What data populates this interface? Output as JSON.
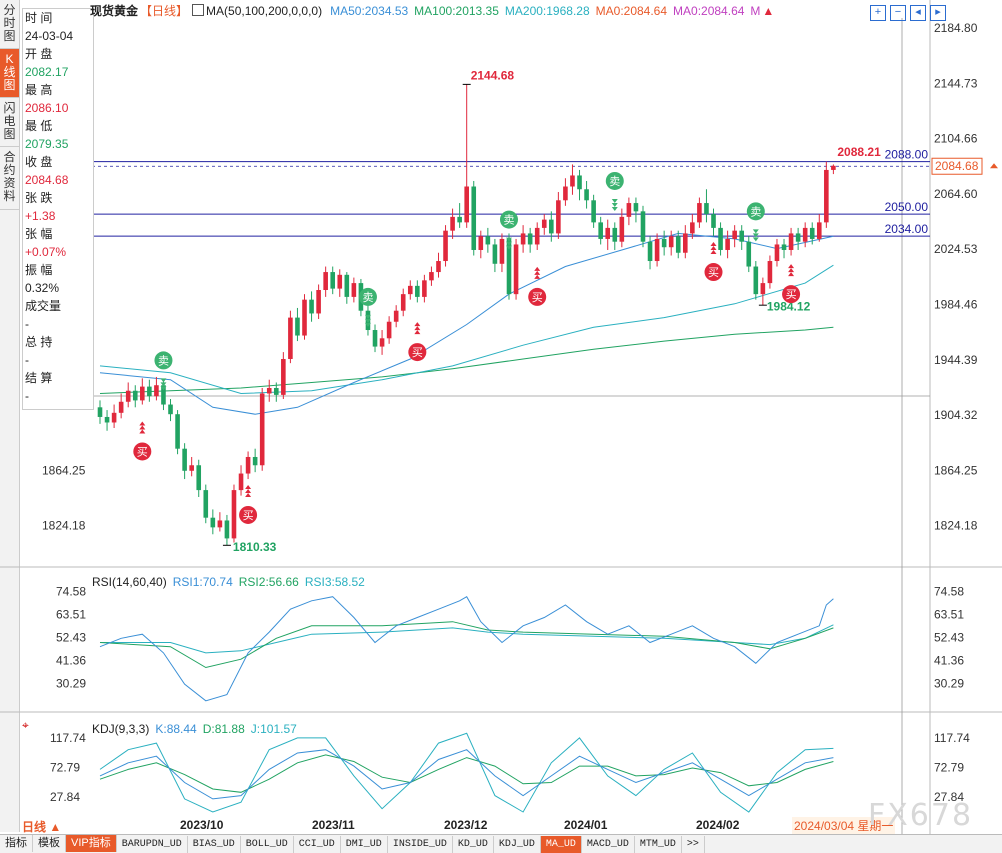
{
  "left_tabs": [
    "分时图",
    "K线图",
    "闪电图",
    "合约资料"
  ],
  "info": {
    "time_label": "时 间",
    "time_value": "24-03-04",
    "open_label": "开 盘",
    "open_value": "2082.17",
    "high_label": "最 高",
    "high_value": "2086.10",
    "low_label": "最 低",
    "low_value": "2079.35",
    "close_label": "收 盘",
    "close_value": "2084.68",
    "change_label": "张 跌",
    "change_value": "+1.38",
    "pct_label": "张 幅",
    "pct_value": "+0.07%",
    "amp_label": "振 幅",
    "amp_value": "0.32%",
    "vol_label": "成交量",
    "vol_value": "-",
    "hold_label": "总 持",
    "hold_value": "-",
    "settle_label": "结 算",
    "settle_value": "-"
  },
  "main_legend": {
    "title": "现货黄金",
    "period": "【日线】",
    "ma_param": "MA(50,100,200,0,0,0)",
    "ma50": "MA50:2034.53",
    "ma100": "MA100:2013.35",
    "ma200": "MA200:1968.28",
    "ma0a": "MA0:2084.64",
    "ma0b": "MA0:2084.64",
    "m": "M"
  },
  "colors": {
    "ma50": "#3a8fd6",
    "ma100": "#21a362",
    "ma200": "#2ab0c0",
    "up": "#e0283c",
    "down": "#21a362"
  },
  "price_axis": [
    "2184.80",
    "2144.73",
    "2104.66",
    "2064.60",
    "2024.53",
    "1984.46",
    "1944.39",
    "1904.32",
    "1864.25",
    "1824.18"
  ],
  "hlines": [
    "2088.00",
    "2050.00",
    "2034.00"
  ],
  "current_price": "2084.68",
  "annotations": {
    "high": "2144.68",
    "low": "1810.33",
    "last_high": "2088.21",
    "mid_low": "1984.12"
  },
  "signals": {
    "buy": "买",
    "sell": "卖"
  },
  "rsi": {
    "title": "RSI(14,60,40)",
    "rsi1": "RSI1:70.74",
    "rsi2": "RSI2:56.66",
    "rsi3": "RSI3:58.52",
    "axis": [
      "74.58",
      "63.51",
      "52.43",
      "41.36",
      "30.29"
    ]
  },
  "kdj": {
    "title": "KDJ(9,3,3)",
    "k": "K:88.44",
    "d": "D:81.88",
    "j": "J:101.57",
    "axis": [
      "117.74",
      "72.79",
      "27.84"
    ]
  },
  "date_axis": [
    "2023/10",
    "2023/11",
    "2023/12",
    "2024/01",
    "2024/02"
  ],
  "period_selector": "日线 ▲",
  "current_date": "2024/03/04 星期一",
  "watermark": "FX678",
  "bottom_buttons": [
    "指标",
    "模板",
    "VIP指标",
    "BARUPDN_UD",
    "BIAS_UD",
    "BOLL_UD",
    "CCI_UD",
    "DMI_UD",
    "INSIDE_UD",
    "KD_UD",
    "KDJ_UD",
    "MA_UD",
    "MACD_UD",
    "MTM_UD",
    ">>"
  ],
  "chart_data": {
    "type": "candlestick",
    "xlim": [
      0,
      112
    ],
    "ylim": [
      1795,
      2195
    ],
    "candles": [
      [
        0,
        1910,
        1903,
        1915,
        1898
      ],
      [
        1,
        1903,
        1899,
        1908,
        1893
      ],
      [
        2,
        1899,
        1906,
        1912,
        1895
      ],
      [
        3,
        1906,
        1914,
        1920,
        1902
      ],
      [
        4,
        1914,
        1922,
        1928,
        1910
      ],
      [
        5,
        1922,
        1915,
        1926,
        1910
      ],
      [
        6,
        1915,
        1925,
        1931,
        1912
      ],
      [
        7,
        1925,
        1918,
        1930,
        1914
      ],
      [
        8,
        1918,
        1926,
        1932,
        1915
      ],
      [
        9,
        1926,
        1912,
        1929,
        1908
      ],
      [
        10,
        1912,
        1905,
        1916,
        1900
      ],
      [
        11,
        1905,
        1880,
        1908,
        1876
      ],
      [
        12,
        1880,
        1864,
        1884,
        1858
      ],
      [
        13,
        1864,
        1868,
        1874,
        1860
      ],
      [
        14,
        1868,
        1850,
        1872,
        1845
      ],
      [
        15,
        1850,
        1830,
        1854,
        1826
      ],
      [
        16,
        1830,
        1823,
        1836,
        1818
      ],
      [
        17,
        1823,
        1828,
        1834,
        1820
      ],
      [
        18,
        1828,
        1815,
        1832,
        1810
      ],
      [
        19,
        1815,
        1850,
        1854,
        1812
      ],
      [
        20,
        1850,
        1862,
        1868,
        1846
      ],
      [
        21,
        1862,
        1874,
        1878,
        1858
      ],
      [
        22,
        1874,
        1868,
        1880,
        1863
      ],
      [
        23,
        1868,
        1920,
        1924,
        1864
      ],
      [
        24,
        1920,
        1924,
        1930,
        1914
      ],
      [
        25,
        1924,
        1919,
        1928,
        1914
      ],
      [
        26,
        1919,
        1945,
        1950,
        1916
      ],
      [
        27,
        1945,
        1975,
        1980,
        1942
      ],
      [
        28,
        1975,
        1962,
        1982,
        1958
      ],
      [
        29,
        1962,
        1988,
        1992,
        1959
      ],
      [
        30,
        1988,
        1978,
        1994,
        1972
      ],
      [
        31,
        1978,
        1995,
        1999,
        1974
      ],
      [
        32,
        1995,
        2008,
        2012,
        1990
      ],
      [
        33,
        2008,
        1996,
        2012,
        1992
      ],
      [
        34,
        1996,
        2006,
        2010,
        1990
      ],
      [
        35,
        2006,
        1990,
        2008,
        1985
      ],
      [
        36,
        1990,
        2000,
        2004,
        1986
      ],
      [
        37,
        2000,
        1980,
        2003,
        1976
      ],
      [
        38,
        1980,
        1966,
        1984,
        1962
      ],
      [
        39,
        1966,
        1954,
        1970,
        1950
      ],
      [
        40,
        1954,
        1960,
        1966,
        1948
      ],
      [
        41,
        1960,
        1972,
        1976,
        1956
      ],
      [
        42,
        1972,
        1980,
        1984,
        1968
      ],
      [
        43,
        1980,
        1992,
        1996,
        1976
      ],
      [
        44,
        1992,
        1998,
        2002,
        1988
      ],
      [
        45,
        1998,
        1990,
        2002,
        1986
      ],
      [
        46,
        1990,
        2002,
        2006,
        1986
      ],
      [
        47,
        2002,
        2008,
        2012,
        1998
      ],
      [
        48,
        2008,
        2016,
        2022,
        2004
      ],
      [
        49,
        2016,
        2038,
        2042,
        2012
      ],
      [
        50,
        2038,
        2048,
        2054,
        2032
      ],
      [
        51,
        2048,
        2044,
        2058,
        2040
      ],
      [
        52,
        2044,
        2070,
        2144,
        2040
      ],
      [
        53,
        2070,
        2024,
        2074,
        2020
      ],
      [
        54,
        2024,
        2034,
        2038,
        2018
      ],
      [
        55,
        2034,
        2028,
        2040,
        2022
      ],
      [
        56,
        2028,
        2014,
        2032,
        2008
      ],
      [
        57,
        2014,
        2032,
        2036,
        2008
      ],
      [
        58,
        2032,
        1992,
        2036,
        1988
      ],
      [
        59,
        1992,
        2028,
        2032,
        1988
      ],
      [
        60,
        2028,
        2036,
        2042,
        2022
      ],
      [
        61,
        2036,
        2028,
        2040,
        2022
      ],
      [
        62,
        2028,
        2040,
        2044,
        2024
      ],
      [
        63,
        2040,
        2046,
        2050,
        2035
      ],
      [
        64,
        2046,
        2036,
        2052,
        2030
      ],
      [
        65,
        2036,
        2060,
        2066,
        2032
      ],
      [
        66,
        2060,
        2070,
        2076,
        2056
      ],
      [
        67,
        2070,
        2078,
        2086,
        2064
      ],
      [
        68,
        2078,
        2068,
        2082,
        2060
      ],
      [
        69,
        2068,
        2060,
        2074,
        2054
      ],
      [
        70,
        2060,
        2044,
        2064,
        2040
      ],
      [
        71,
        2044,
        2032,
        2048,
        2028
      ],
      [
        72,
        2032,
        2040,
        2046,
        2024
      ],
      [
        73,
        2040,
        2030,
        2044,
        2024
      ],
      [
        74,
        2030,
        2048,
        2054,
        2026
      ],
      [
        75,
        2048,
        2058,
        2062,
        2042
      ],
      [
        76,
        2058,
        2052,
        2062,
        2044
      ],
      [
        77,
        2052,
        2030,
        2056,
        2026
      ],
      [
        78,
        2030,
        2016,
        2034,
        2010
      ],
      [
        79,
        2016,
        2032,
        2036,
        2012
      ],
      [
        80,
        2032,
        2026,
        2038,
        2020
      ],
      [
        81,
        2026,
        2034,
        2038,
        2020
      ],
      [
        82,
        2034,
        2022,
        2038,
        2018
      ],
      [
        83,
        2022,
        2036,
        2042,
        2018
      ],
      [
        84,
        2036,
        2044,
        2050,
        2032
      ],
      [
        85,
        2044,
        2058,
        2062,
        2040
      ],
      [
        86,
        2058,
        2050,
        2068,
        2044
      ],
      [
        87,
        2050,
        2040,
        2054,
        2034
      ],
      [
        88,
        2040,
        2024,
        2044,
        2020
      ],
      [
        89,
        2024,
        2032,
        2038,
        2018
      ],
      [
        90,
        2032,
        2038,
        2042,
        2026
      ],
      [
        91,
        2038,
        2030,
        2042,
        2024
      ],
      [
        92,
        2030,
        2012,
        2034,
        2008
      ],
      [
        93,
        2012,
        1992,
        2016,
        1988
      ],
      [
        94,
        1992,
        2000,
        2004,
        1984
      ],
      [
        95,
        2000,
        2016,
        2020,
        1996
      ],
      [
        96,
        2016,
        2028,
        2032,
        2012
      ],
      [
        97,
        2028,
        2024,
        2032,
        2018
      ],
      [
        98,
        2024,
        2036,
        2040,
        2020
      ],
      [
        99,
        2036,
        2030,
        2040,
        2024
      ],
      [
        100,
        2030,
        2040,
        2044,
        2026
      ],
      [
        101,
        2040,
        2032,
        2044,
        2028
      ],
      [
        102,
        2032,
        2044,
        2050,
        2030
      ],
      [
        103,
        2044,
        2082,
        2088,
        2040
      ],
      [
        104,
        2082,
        2085,
        2086,
        2079
      ]
    ],
    "ma50": [
      [
        0,
        1935
      ],
      [
        10,
        1930
      ],
      [
        16,
        1910
      ],
      [
        22,
        1905
      ],
      [
        28,
        1910
      ],
      [
        36,
        1928
      ],
      [
        44,
        1945
      ],
      [
        52,
        1970
      ],
      [
        58,
        1992
      ],
      [
        66,
        2012
      ],
      [
        74,
        2024
      ],
      [
        82,
        2036
      ],
      [
        90,
        2032
      ],
      [
        96,
        2025
      ],
      [
        104,
        2034
      ]
    ],
    "ma100": [
      [
        0,
        1940
      ],
      [
        10,
        1935
      ],
      [
        20,
        1920
      ],
      [
        30,
        1922
      ],
      [
        40,
        1930
      ],
      [
        50,
        1940
      ],
      [
        60,
        1955
      ],
      [
        70,
        1968
      ],
      [
        80,
        1975
      ],
      [
        90,
        1985
      ],
      [
        100,
        2000
      ],
      [
        104,
        2013
      ]
    ],
    "ma200": [
      [
        0,
        1920
      ],
      [
        10,
        1922
      ],
      [
        20,
        1924
      ],
      [
        30,
        1928
      ],
      [
        40,
        1932
      ],
      [
        50,
        1938
      ],
      [
        60,
        1945
      ],
      [
        70,
        1952
      ],
      [
        80,
        1958
      ],
      [
        90,
        1963
      ],
      [
        100,
        1966
      ],
      [
        104,
        1968
      ]
    ],
    "rsi_ylim": [
      20,
      80
    ],
    "rsi1": [
      [
        0,
        48
      ],
      [
        3,
        52
      ],
      [
        6,
        54
      ],
      [
        9,
        45
      ],
      [
        12,
        30
      ],
      [
        15,
        22
      ],
      [
        18,
        25
      ],
      [
        21,
        45
      ],
      [
        24,
        55
      ],
      [
        27,
        66
      ],
      [
        30,
        70
      ],
      [
        33,
        72
      ],
      [
        36,
        62
      ],
      [
        39,
        50
      ],
      [
        42,
        58
      ],
      [
        45,
        62
      ],
      [
        48,
        66
      ],
      [
        51,
        70
      ],
      [
        52,
        72
      ],
      [
        54,
        60
      ],
      [
        57,
        50
      ],
      [
        60,
        58
      ],
      [
        63,
        62
      ],
      [
        66,
        68
      ],
      [
        69,
        60
      ],
      [
        72,
        54
      ],
      [
        75,
        58
      ],
      [
        78,
        50
      ],
      [
        81,
        54
      ],
      [
        84,
        58
      ],
      [
        87,
        52
      ],
      [
        90,
        48
      ],
      [
        93,
        40
      ],
      [
        96,
        50
      ],
      [
        99,
        54
      ],
      [
        102,
        58
      ],
      [
        103,
        68
      ],
      [
        104,
        71
      ]
    ],
    "rsi2": [
      [
        0,
        50
      ],
      [
        10,
        48
      ],
      [
        15,
        38
      ],
      [
        20,
        42
      ],
      [
        25,
        52
      ],
      [
        30,
        58
      ],
      [
        40,
        58
      ],
      [
        50,
        60
      ],
      [
        55,
        56
      ],
      [
        60,
        55
      ],
      [
        70,
        54
      ],
      [
        80,
        53
      ],
      [
        90,
        50
      ],
      [
        95,
        47
      ],
      [
        100,
        52
      ],
      [
        104,
        57
      ]
    ],
    "rsi3": [
      [
        0,
        50
      ],
      [
        10,
        50
      ],
      [
        15,
        45
      ],
      [
        20,
        46
      ],
      [
        25,
        50
      ],
      [
        30,
        54
      ],
      [
        40,
        55
      ],
      [
        50,
        57
      ],
      [
        55,
        55
      ],
      [
        60,
        54
      ],
      [
        70,
        53
      ],
      [
        80,
        52
      ],
      [
        90,
        50
      ],
      [
        95,
        49
      ],
      [
        100,
        52
      ],
      [
        104,
        58.5
      ]
    ],
    "kdj_ylim": [
      5,
      130
    ],
    "kdj_k": [
      [
        0,
        60
      ],
      [
        4,
        80
      ],
      [
        8,
        90
      ],
      [
        12,
        50
      ],
      [
        16,
        25
      ],
      [
        20,
        30
      ],
      [
        24,
        70
      ],
      [
        28,
        95
      ],
      [
        32,
        100
      ],
      [
        36,
        75
      ],
      [
        40,
        40
      ],
      [
        44,
        50
      ],
      [
        48,
        85
      ],
      [
        52,
        100
      ],
      [
        56,
        60
      ],
      [
        60,
        30
      ],
      [
        64,
        60
      ],
      [
        68,
        90
      ],
      [
        72,
        70
      ],
      [
        76,
        50
      ],
      [
        80,
        65
      ],
      [
        84,
        80
      ],
      [
        88,
        55
      ],
      [
        92,
        30
      ],
      [
        96,
        55
      ],
      [
        100,
        80
      ],
      [
        104,
        88
      ]
    ],
    "kdj_d": [
      [
        0,
        55
      ],
      [
        4,
        70
      ],
      [
        8,
        80
      ],
      [
        12,
        62
      ],
      [
        16,
        40
      ],
      [
        20,
        35
      ],
      [
        24,
        55
      ],
      [
        28,
        80
      ],
      [
        32,
        92
      ],
      [
        36,
        82
      ],
      [
        40,
        58
      ],
      [
        44,
        50
      ],
      [
        48,
        70
      ],
      [
        52,
        88
      ],
      [
        56,
        75
      ],
      [
        60,
        48
      ],
      [
        64,
        50
      ],
      [
        68,
        75
      ],
      [
        72,
        75
      ],
      [
        76,
        60
      ],
      [
        80,
        62
      ],
      [
        84,
        72
      ],
      [
        88,
        65
      ],
      [
        92,
        45
      ],
      [
        96,
        50
      ],
      [
        100,
        70
      ],
      [
        104,
        82
      ]
    ],
    "kdj_j": [
      [
        0,
        70
      ],
      [
        4,
        100
      ],
      [
        8,
        110
      ],
      [
        12,
        25
      ],
      [
        16,
        5
      ],
      [
        20,
        20
      ],
      [
        24,
        100
      ],
      [
        28,
        118
      ],
      [
        32,
        118
      ],
      [
        36,
        60
      ],
      [
        40,
        10
      ],
      [
        44,
        50
      ],
      [
        48,
        110
      ],
      [
        52,
        125
      ],
      [
        56,
        30
      ],
      [
        60,
        5
      ],
      [
        64,
        80
      ],
      [
        68,
        118
      ],
      [
        72,
        60
      ],
      [
        76,
        30
      ],
      [
        80,
        70
      ],
      [
        84,
        95
      ],
      [
        88,
        35
      ],
      [
        92,
        5
      ],
      [
        96,
        65
      ],
      [
        100,
        100
      ],
      [
        104,
        102
      ]
    ]
  }
}
